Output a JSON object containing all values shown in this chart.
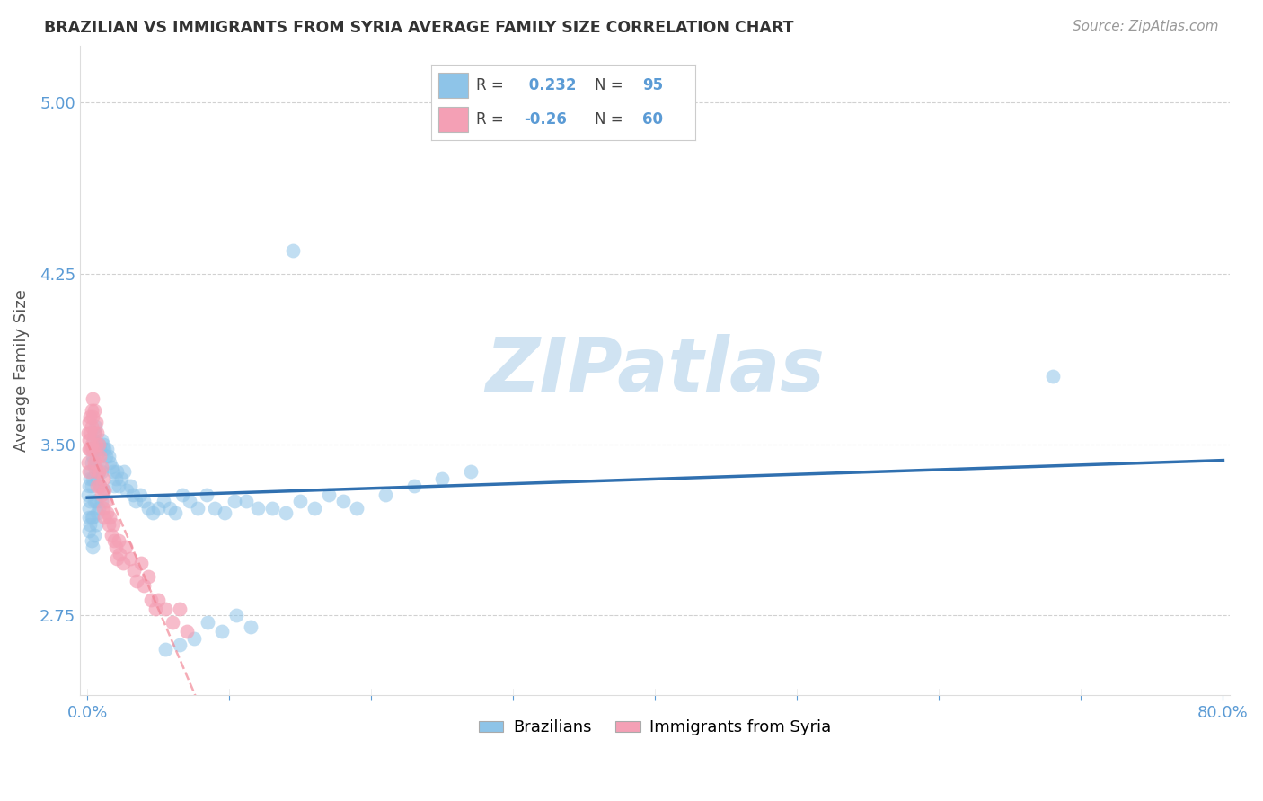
{
  "title": "BRAZILIAN VS IMMIGRANTS FROM SYRIA AVERAGE FAMILY SIZE CORRELATION CHART",
  "source": "Source: ZipAtlas.com",
  "ylabel": "Average Family Size",
  "yticks": [
    2.75,
    3.5,
    4.25,
    5.0
  ],
  "watermark": "ZIPatlas",
  "blue_R": 0.232,
  "blue_N": 95,
  "pink_R": -0.26,
  "pink_N": 60,
  "blue_color": "#8ec4e8",
  "pink_color": "#f4a0b5",
  "blue_line_color": "#3070b0",
  "pink_line_color": "#f08090",
  "background_color": "#ffffff",
  "grid_color": "#cccccc",
  "title_color": "#333333",
  "axis_color": "#5b9bd5",
  "watermark_color": "#c8dff0",
  "blue_x": [
    0.0005,
    0.001,
    0.001,
    0.0015,
    0.001,
    0.002,
    0.002,
    0.0025,
    0.002,
    0.003,
    0.003,
    0.003,
    0.0035,
    0.003,
    0.004,
    0.004,
    0.004,
    0.0045,
    0.004,
    0.005,
    0.005,
    0.005,
    0.0055,
    0.005,
    0.006,
    0.006,
    0.006,
    0.0065,
    0.007,
    0.007,
    0.007,
    0.008,
    0.008,
    0.008,
    0.009,
    0.009,
    0.01,
    0.01,
    0.01,
    0.011,
    0.011,
    0.012,
    0.013,
    0.014,
    0.015,
    0.016,
    0.017,
    0.018,
    0.019,
    0.02,
    0.021,
    0.022,
    0.024,
    0.026,
    0.028,
    0.03,
    0.032,
    0.034,
    0.037,
    0.04,
    0.043,
    0.046,
    0.05,
    0.054,
    0.058,
    0.062,
    0.067,
    0.072,
    0.078,
    0.084,
    0.09,
    0.097,
    0.104,
    0.112,
    0.12,
    0.13,
    0.14,
    0.15,
    0.16,
    0.17,
    0.18,
    0.19,
    0.21,
    0.23,
    0.25,
    0.27,
    0.145,
    0.085,
    0.095,
    0.105,
    0.115,
    0.065,
    0.055,
    0.68,
    0.075
  ],
  "blue_y": [
    3.28,
    3.22,
    3.18,
    3.32,
    3.12,
    3.35,
    3.25,
    3.38,
    3.15,
    3.42,
    3.32,
    3.18,
    3.45,
    3.08,
    3.48,
    3.35,
    3.18,
    3.52,
    3.05,
    3.55,
    3.4,
    3.25,
    3.58,
    3.1,
    3.38,
    3.25,
    3.15,
    3.42,
    3.48,
    3.35,
    3.2,
    3.5,
    3.38,
    3.22,
    3.48,
    3.32,
    3.52,
    3.38,
    3.25,
    3.5,
    3.3,
    3.48,
    3.45,
    3.48,
    3.45,
    3.42,
    3.4,
    3.38,
    3.32,
    3.35,
    3.38,
    3.32,
    3.35,
    3.38,
    3.3,
    3.32,
    3.28,
    3.25,
    3.28,
    3.25,
    3.22,
    3.2,
    3.22,
    3.25,
    3.22,
    3.2,
    3.28,
    3.25,
    3.22,
    3.28,
    3.22,
    3.2,
    3.25,
    3.25,
    3.22,
    3.22,
    3.2,
    3.25,
    3.22,
    3.28,
    3.25,
    3.22,
    3.28,
    3.32,
    3.35,
    3.38,
    4.35,
    2.72,
    2.68,
    2.75,
    2.7,
    2.62,
    2.6,
    3.8,
    2.65
  ],
  "pink_x": [
    0.0003,
    0.0005,
    0.001,
    0.001,
    0.001,
    0.0015,
    0.002,
    0.002,
    0.002,
    0.003,
    0.003,
    0.003,
    0.004,
    0.004,
    0.004,
    0.005,
    0.005,
    0.005,
    0.006,
    0.006,
    0.006,
    0.007,
    0.007,
    0.007,
    0.008,
    0.008,
    0.009,
    0.009,
    0.01,
    0.01,
    0.011,
    0.011,
    0.012,
    0.012,
    0.013,
    0.014,
    0.015,
    0.016,
    0.017,
    0.018,
    0.019,
    0.02,
    0.021,
    0.022,
    0.023,
    0.025,
    0.027,
    0.03,
    0.033,
    0.035,
    0.038,
    0.04,
    0.043,
    0.045,
    0.048,
    0.05,
    0.055,
    0.06,
    0.065,
    0.07
  ],
  "pink_y": [
    3.42,
    3.55,
    3.52,
    3.48,
    3.38,
    3.6,
    3.62,
    3.55,
    3.48,
    3.65,
    3.58,
    3.5,
    3.7,
    3.62,
    3.48,
    3.65,
    3.55,
    3.42,
    3.6,
    3.5,
    3.38,
    3.55,
    3.45,
    3.32,
    3.5,
    3.38,
    3.45,
    3.32,
    3.4,
    3.28,
    3.35,
    3.22,
    3.3,
    3.18,
    3.25,
    3.2,
    3.15,
    3.18,
    3.1,
    3.15,
    3.08,
    3.05,
    3.0,
    3.08,
    3.02,
    2.98,
    3.05,
    3.0,
    2.95,
    2.9,
    2.98,
    2.88,
    2.92,
    2.82,
    2.78,
    2.82,
    2.78,
    2.72,
    2.78,
    2.68
  ]
}
